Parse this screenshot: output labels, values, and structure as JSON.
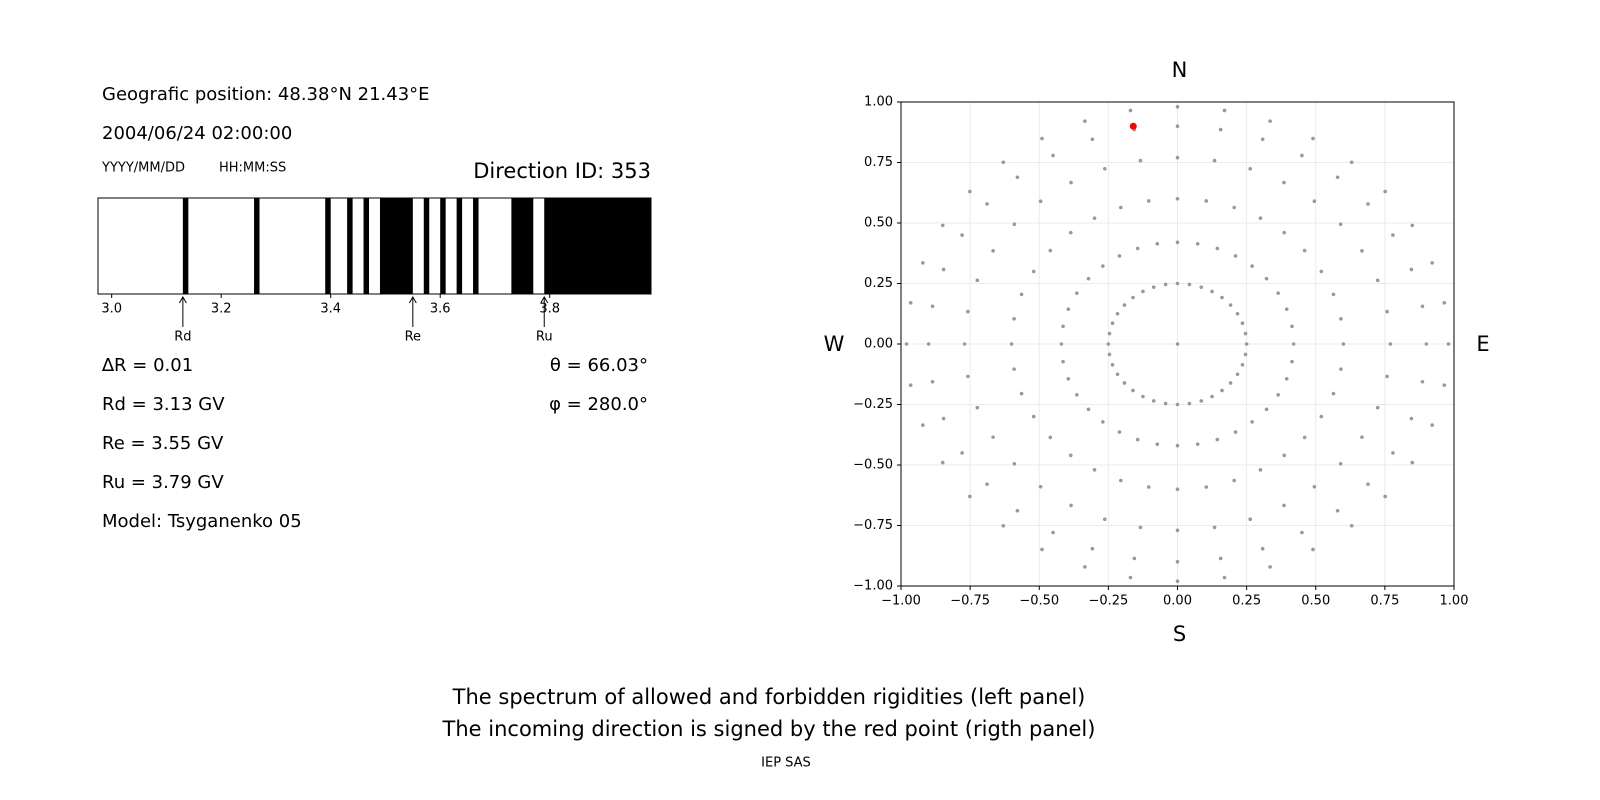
{
  "info": {
    "position": "Geografic position: 48.38°N 21.43°E",
    "datetime": "2004/06/24 02:00:00",
    "date_format": "YYYY/MM/DD",
    "time_format": "HH:MM:SS",
    "delta_r": "∆R = 0.01",
    "rd": "Rd = 3.13 GV",
    "re": "Re = 3.55 GV",
    "ru": "Ru = 3.79 GV",
    "model": "Model: Tsyganenko 05",
    "theta": "θ = 66.03°",
    "phi": "φ = 280.0°"
  },
  "chart_data": [
    {
      "type": "spectrum",
      "title": "Direction ID: 353",
      "color": "#000000",
      "xlim": [
        2.975,
        3.985
      ],
      "xticks": [
        {
          "value": 3,
          "label": "3.0"
        },
        3.2,
        3.4,
        3.6,
        3.8
      ],
      "bands": [
        [
          3.13,
          3.14
        ],
        [
          3.26,
          3.27
        ],
        [
          3.39,
          3.4
        ],
        [
          3.43,
          3.44
        ],
        [
          3.46,
          3.47
        ],
        [
          3.49,
          3.55
        ],
        [
          3.57,
          3.58
        ],
        [
          3.6,
          3.61
        ],
        [
          3.63,
          3.64
        ],
        [
          3.66,
          3.67
        ],
        [
          3.73,
          3.77
        ],
        [
          3.79,
          3.985
        ]
      ],
      "markers": [
        {
          "name": "Rd",
          "value": 3.13
        },
        {
          "name": "Re",
          "value": 3.55
        },
        {
          "name": "Ru",
          "value": 3.79
        }
      ]
    },
    {
      "type": "scatter",
      "grid": true,
      "labels": {
        "top": "N",
        "bottom": "S",
        "left": "W",
        "right": "E"
      },
      "xlim": [
        -1,
        1
      ],
      "ylim": [
        -1,
        1
      ],
      "xticks": [
        {
          "value": -1,
          "label": "−1.00"
        },
        {
          "value": -0.75,
          "label": "−0.75"
        },
        {
          "value": -0.5,
          "label": "−0.50"
        },
        {
          "value": -0.25,
          "label": "−0.25"
        },
        {
          "value": 0,
          "label": "0.00"
        },
        {
          "value": 0.25,
          "label": "0.25"
        },
        {
          "value": 0.5,
          "label": "0.50"
        },
        {
          "value": 0.75,
          "label": "0.75"
        },
        {
          "value": 1,
          "label": "1.00"
        }
      ],
      "yticks": [
        {
          "value": -1,
          "label": "−1.00"
        },
        {
          "value": -0.75,
          "label": "−0.75"
        },
        {
          "value": -0.5,
          "label": "−0.50"
        },
        {
          "value": -0.25,
          "label": "−0.25"
        },
        {
          "value": 0,
          "label": "0.00"
        },
        {
          "value": 0.25,
          "label": "0.25"
        },
        {
          "value": 0.5,
          "label": "0.50"
        },
        {
          "value": 0.75,
          "label": "0.75"
        },
        {
          "value": 1,
          "label": "1.00"
        }
      ],
      "points": {
        "color": "#999999",
        "x": [
          0,
          0,
          0,
          0,
          0,
          0,
          0.043,
          0.073,
          0.104,
          0.134,
          0.156,
          0.17,
          0.086,
          0.144,
          0.205,
          0.263,
          0.308,
          0.335,
          0.125,
          0.21,
          0.3,
          0.385,
          0.45,
          0.49,
          0.161,
          0.27,
          0.386,
          0.495,
          0.579,
          0.63,
          0.192,
          0.322,
          0.46,
          0.59,
          0.689,
          0.751,
          0.217,
          0.364,
          0.52,
          0.667,
          0.779,
          0.849,
          0.235,
          0.395,
          0.564,
          0.724,
          0.846,
          0.921,
          0.246,
          0.414,
          0.591,
          0.758,
          0.886,
          0.965,
          0.25,
          0.42,
          0.6,
          0.77,
          0.9,
          0.98,
          0.246,
          0.414,
          0.591,
          0.758,
          0.886,
          0.965,
          0.235,
          0.395,
          0.564,
          0.724,
          0.846,
          0.921,
          0.217,
          0.364,
          0.52,
          0.667,
          0.779,
          0.849,
          0.192,
          0.322,
          0.46,
          0.59,
          0.689,
          0.751,
          0.161,
          0.27,
          0.386,
          0.495,
          0.579,
          0.63,
          0.125,
          0.21,
          0.3,
          0.385,
          0.45,
          0.49,
          0.086,
          0.144,
          0.205,
          0.263,
          0.308,
          0.335,
          0.043,
          0.073,
          0.104,
          0.134,
          0.156,
          0.17,
          0,
          0,
          0,
          0,
          0,
          0,
          -0.043,
          -0.073,
          -0.104,
          -0.134,
          -0.156,
          -0.17,
          -0.086,
          -0.144,
          -0.205,
          -0.263,
          -0.308,
          -0.335,
          -0.125,
          -0.21,
          -0.3,
          -0.385,
          -0.45,
          -0.49,
          -0.161,
          -0.27,
          -0.386,
          -0.495,
          -0.579,
          -0.63,
          -0.192,
          -0.322,
          -0.46,
          -0.59,
          -0.689,
          -0.751,
          -0.217,
          -0.364,
          -0.52,
          -0.667,
          -0.779,
          -0.849,
          -0.235,
          -0.395,
          -0.564,
          -0.724,
          -0.846,
          -0.921,
          -0.246,
          -0.414,
          -0.591,
          -0.758,
          -0.886,
          -0.965,
          -0.25,
          -0.42,
          -0.6,
          -0.77,
          -0.9,
          -0.98,
          -0.246,
          -0.414,
          -0.591,
          -0.758,
          -0.886,
          -0.965,
          -0.235,
          -0.395,
          -0.564,
          -0.724,
          -0.846,
          -0.921,
          -0.217,
          -0.364,
          -0.52,
          -0.667,
          -0.779,
          -0.849,
          -0.192,
          -0.322,
          -0.46,
          -0.59,
          -0.689,
          -0.751,
          -0.161,
          -0.27,
          -0.386,
          -0.495,
          -0.579,
          -0.63,
          -0.125,
          -0.21,
          -0.3,
          -0.385,
          -0.45,
          -0.49,
          -0.086,
          -0.144,
          -0.205,
          -0.263,
          -0.308,
          -0.335,
          -0.043,
          -0.073,
          -0.104,
          -0.134,
          -0.156,
          -0.17,
          0
        ],
        "y": [
          0.25,
          0.42,
          0.6,
          0.77,
          0.9,
          0.98,
          0.246,
          0.414,
          0.591,
          0.758,
          0.886,
          0.965,
          0.235,
          0.395,
          0.564,
          0.724,
          0.846,
          0.921,
          0.217,
          0.364,
          0.52,
          0.667,
          0.779,
          0.849,
          0.192,
          0.322,
          0.46,
          0.59,
          0.689,
          0.751,
          0.161,
          0.27,
          0.386,
          0.495,
          0.579,
          0.63,
          0.125,
          0.21,
          0.3,
          0.385,
          0.45,
          0.49,
          0.086,
          0.144,
          0.205,
          0.263,
          0.308,
          0.335,
          0.043,
          0.073,
          0.104,
          0.134,
          0.156,
          0.17,
          0,
          0,
          0,
          0,
          0,
          0,
          -0.043,
          -0.073,
          -0.104,
          -0.134,
          -0.156,
          -0.17,
          -0.086,
          -0.144,
          -0.205,
          -0.263,
          -0.308,
          -0.335,
          -0.125,
          -0.21,
          -0.3,
          -0.385,
          -0.45,
          -0.49,
          -0.161,
          -0.27,
          -0.386,
          -0.495,
          -0.579,
          -0.63,
          -0.192,
          -0.322,
          -0.46,
          -0.59,
          -0.689,
          -0.751,
          -0.217,
          -0.364,
          -0.52,
          -0.667,
          -0.779,
          -0.849,
          -0.235,
          -0.395,
          -0.564,
          -0.724,
          -0.846,
          -0.921,
          -0.246,
          -0.414,
          -0.591,
          -0.758,
          -0.886,
          -0.965,
          -0.25,
          -0.42,
          -0.6,
          -0.77,
          -0.9,
          -0.98,
          -0.246,
          -0.414,
          -0.591,
          -0.758,
          -0.886,
          -0.965,
          -0.235,
          -0.395,
          -0.564,
          -0.724,
          -0.846,
          -0.921,
          -0.217,
          -0.364,
          -0.52,
          -0.667,
          -0.779,
          -0.849,
          -0.192,
          -0.322,
          -0.46,
          -0.59,
          -0.689,
          -0.751,
          -0.161,
          -0.27,
          -0.386,
          -0.495,
          -0.579,
          -0.63,
          -0.125,
          -0.21,
          -0.3,
          -0.385,
          -0.45,
          -0.49,
          -0.086,
          -0.144,
          -0.205,
          -0.263,
          -0.308,
          -0.335,
          -0.043,
          -0.073,
          -0.104,
          -0.134,
          -0.156,
          -0.17,
          0,
          0,
          0,
          0,
          0,
          0,
          0.043,
          0.073,
          0.104,
          0.134,
          0.156,
          0.17,
          0.086,
          0.144,
          0.205,
          0.263,
          0.308,
          0.335,
          0.125,
          0.21,
          0.3,
          0.385,
          0.45,
          0.49,
          0.161,
          0.27,
          0.386,
          0.495,
          0.579,
          0.63,
          0.192,
          0.322,
          0.46,
          0.59,
          0.689,
          0.751,
          0.217,
          0.364,
          0.52,
          0.667,
          0.779,
          0.849,
          0.235,
          0.395,
          0.564,
          0.724,
          0.846,
          0.921,
          0.246,
          0.414,
          0.591,
          0.758,
          0.886,
          0.965,
          0
        ]
      },
      "highlight": {
        "color": "#ff0000",
        "x": -0.16,
        "y": 0.9
      }
    }
  ],
  "footer": {
    "lines": [
      "The spectrum of allowed and forbidden rigidities (left panel)",
      "The incoming direction is signed by the red point (rigth panel)"
    ],
    "credit": "IEP SAS"
  }
}
